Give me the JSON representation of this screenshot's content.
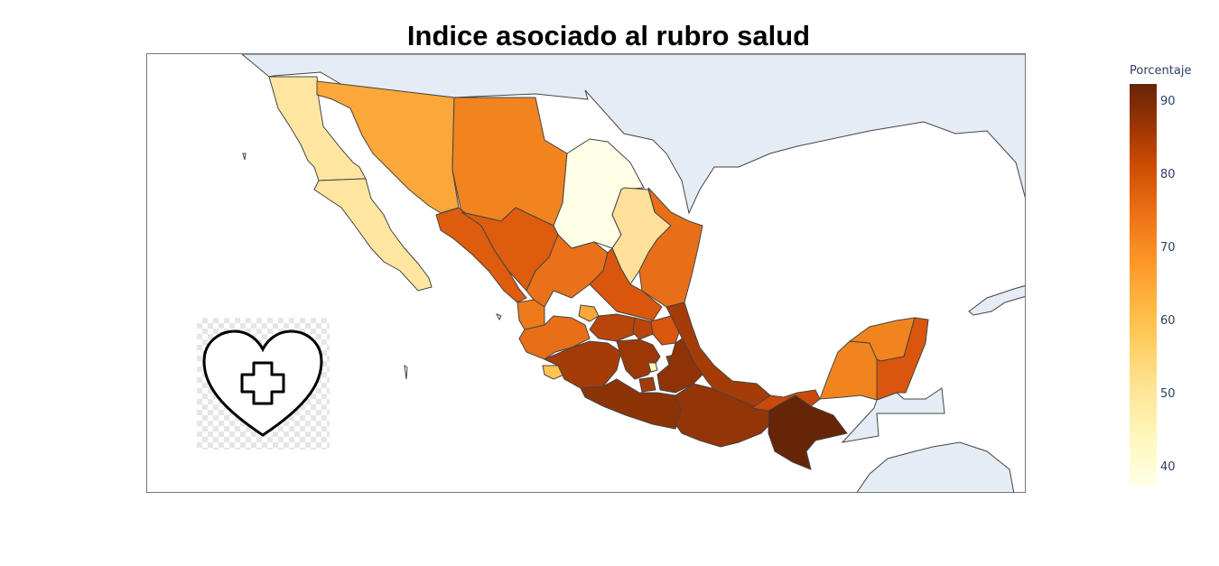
{
  "title": "Indice asociado al rubro salud",
  "colorbar": {
    "title": "Porcentaje",
    "ticks": [
      "90",
      "80",
      "70",
      "60",
      "50",
      "40"
    ],
    "colorscale": [
      "#ffffe6",
      "#fee391",
      "#fec44f",
      "#fe9929",
      "#ec7014",
      "#cc4c02",
      "#993404",
      "#662506"
    ]
  },
  "logo": {
    "icon": "heart-plus-icon"
  },
  "colors": {
    "land": "#ffffff",
    "neighbors": "#e5ecf6",
    "border": "#444444"
  }
}
